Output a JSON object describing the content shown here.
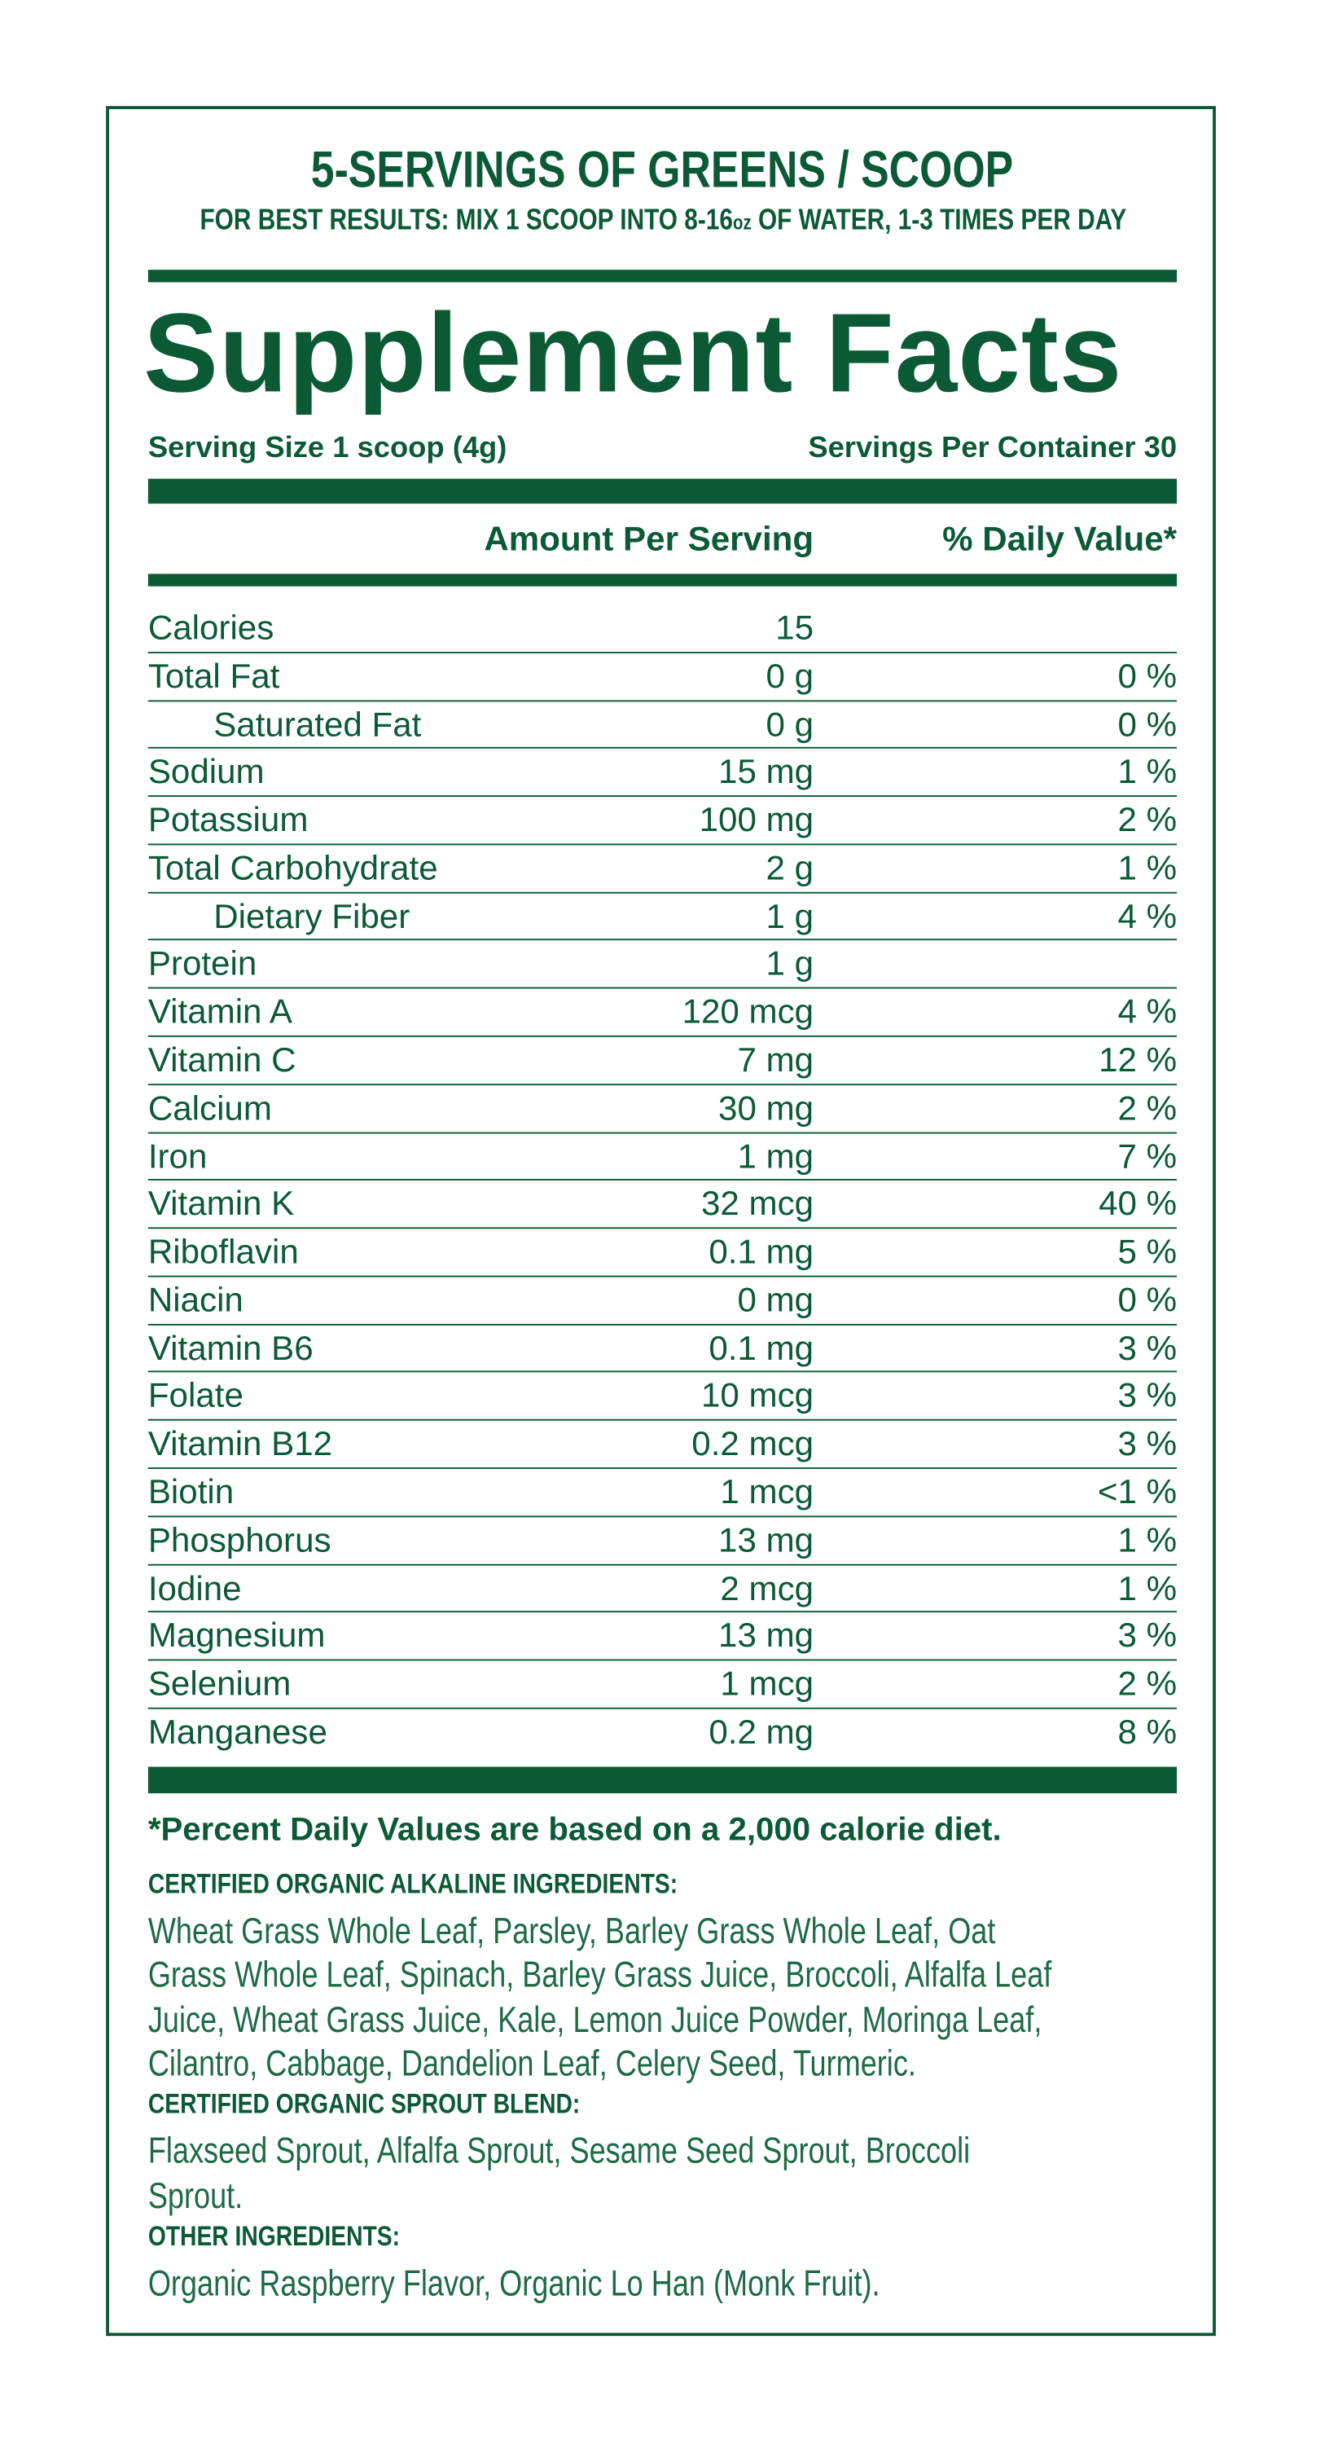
{
  "header": {
    "title": "5-SERVINGS OF GREENS / SCOOP",
    "subtitle": [
      "FOR BEST RESULTS: MIX 1 SCOOP INTO 8-16",
      "oz",
      " OF WATER, 1-3 TIMES PER DAY"
    ]
  },
  "panel": {
    "title": "Supplement Facts",
    "serving_size": "Serving Size 1 scoop (4g)",
    "servings_per_container": "Servings Per Container 30",
    "column_headers": [
      "Amount Per Serving",
      "% Daily Value*"
    ],
    "rows": [
      {
        "name": "Calories",
        "amount": "15"
      },
      {
        "name": "Total Fat",
        "amount": "0 g",
        "dv": "0 %"
      },
      {
        "name": "Saturated Fat",
        "amount": "0 g",
        "dv": "0 %",
        "indent": true
      },
      {
        "name": "Sodium",
        "amount": "15 mg",
        "dv": "1 %"
      },
      {
        "name": "Potassium",
        "amount": "100 mg",
        "dv": "2 %"
      },
      {
        "name": "Total Carbohydrate",
        "amount": "2 g",
        "dv": "1 %"
      },
      {
        "name": "Dietary Fiber",
        "amount": "1 g",
        "dv": "4 %",
        "indent": true
      },
      {
        "name": "Protein",
        "amount": "1 g"
      },
      {
        "name": "Vitamin A",
        "amount": "120 mcg",
        "dv": "4 %"
      },
      {
        "name": "Vitamin C",
        "amount": "7 mg",
        "dv": "12 %"
      },
      {
        "name": "Calcium",
        "amount": "30 mg",
        "dv": "2 %"
      },
      {
        "name": "Iron",
        "amount": "1 mg",
        "dv": "7 %"
      },
      {
        "name": "Vitamin K",
        "amount": "32 mcg",
        "dv": "40 %"
      },
      {
        "name": "Riboflavin",
        "amount": "0.1 mg",
        "dv": "5 %"
      },
      {
        "name": "Niacin",
        "amount": "0 mg",
        "dv": "0 %"
      },
      {
        "name": "Vitamin B6",
        "amount": "0.1 mg",
        "dv": "3 %"
      },
      {
        "name": "Folate",
        "amount": "10 mcg",
        "dv": "3 %"
      },
      {
        "name": "Vitamin B12",
        "amount": "0.2 mcg",
        "dv": "3 %"
      },
      {
        "name": "Biotin",
        "amount": "1 mcg",
        "dv": "<1 %"
      },
      {
        "name": "Phosphorus",
        "amount": "13 mg",
        "dv": "1 %"
      },
      {
        "name": "Iodine",
        "amount": "2 mcg",
        "dv": "1 %"
      },
      {
        "name": "Magnesium",
        "amount": "13 mg",
        "dv": "3 %"
      },
      {
        "name": "Selenium",
        "amount": "1 mcg",
        "dv": "2 %"
      },
      {
        "name": "Manganese",
        "amount": "0.2 mg",
        "dv": "8 %"
      }
    ],
    "footnote": "*Percent Daily Values are based on a 2,000 calorie diet."
  },
  "ingredients": [
    {
      "heading": "CERTIFIED ORGANIC ALKALINE INGREDIENTS:",
      "lines": [
        "Wheat Grass Whole Leaf, Parsley, Barley Grass Whole Leaf, Oat",
        "Grass Whole Leaf, Spinach, Barley Grass Juice, Broccoli, Alfalfa Leaf",
        "Juice, Wheat Grass Juice, Kale, Lemon Juice Powder, Moringa Leaf,",
        "Cilantro, Cabbage, Dandelion Leaf, Celery Seed, Turmeric."
      ]
    },
    {
      "heading": "CERTIFIED ORGANIC SPROUT BLEND:",
      "lines": [
        "Flaxseed Sprout, Alfalfa Sprout, Sesame Seed Sprout, Broccoli",
        "Sprout."
      ]
    },
    {
      "heading": "OTHER INGREDIENTS:",
      "lines": [
        "Organic Raspberry Flavor, Organic Lo Han (Monk Fruit)."
      ]
    }
  ]
}
